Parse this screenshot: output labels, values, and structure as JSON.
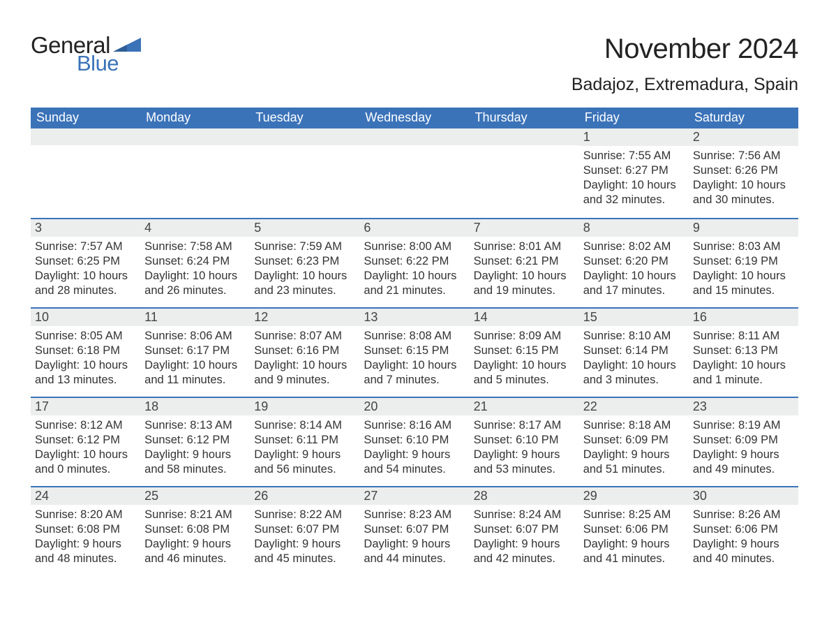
{
  "logo": {
    "general": "General",
    "blue": "Blue",
    "tri_color": "#3b73b9"
  },
  "month_title": "November 2024",
  "location": "Badajoz, Extremadura, Spain",
  "colors": {
    "header_bg": "#3b73b9",
    "header_text": "#ffffff",
    "date_bar_bg": "#eceded",
    "body_text": "#333333",
    "week_divider": "#3b73b9",
    "page_bg": "#ffffff"
  },
  "fonts": {
    "month_title_pt": 40,
    "location_pt": 25,
    "weekday_pt": 18,
    "date_pt": 18,
    "body_pt": 16.5
  },
  "weekdays": [
    "Sunday",
    "Monday",
    "Tuesday",
    "Wednesday",
    "Thursday",
    "Friday",
    "Saturday"
  ],
  "weeks": [
    [
      null,
      null,
      null,
      null,
      null,
      {
        "date": "1",
        "sunrise": "Sunrise: 7:55 AM",
        "sunset": "Sunset: 6:27 PM",
        "daylight": "Daylight: 10 hours and 32 minutes."
      },
      {
        "date": "2",
        "sunrise": "Sunrise: 7:56 AM",
        "sunset": "Sunset: 6:26 PM",
        "daylight": "Daylight: 10 hours and 30 minutes."
      }
    ],
    [
      {
        "date": "3",
        "sunrise": "Sunrise: 7:57 AM",
        "sunset": "Sunset: 6:25 PM",
        "daylight": "Daylight: 10 hours and 28 minutes."
      },
      {
        "date": "4",
        "sunrise": "Sunrise: 7:58 AM",
        "sunset": "Sunset: 6:24 PM",
        "daylight": "Daylight: 10 hours and 26 minutes."
      },
      {
        "date": "5",
        "sunrise": "Sunrise: 7:59 AM",
        "sunset": "Sunset: 6:23 PM",
        "daylight": "Daylight: 10 hours and 23 minutes."
      },
      {
        "date": "6",
        "sunrise": "Sunrise: 8:00 AM",
        "sunset": "Sunset: 6:22 PM",
        "daylight": "Daylight: 10 hours and 21 minutes."
      },
      {
        "date": "7",
        "sunrise": "Sunrise: 8:01 AM",
        "sunset": "Sunset: 6:21 PM",
        "daylight": "Daylight: 10 hours and 19 minutes."
      },
      {
        "date": "8",
        "sunrise": "Sunrise: 8:02 AM",
        "sunset": "Sunset: 6:20 PM",
        "daylight": "Daylight: 10 hours and 17 minutes."
      },
      {
        "date": "9",
        "sunrise": "Sunrise: 8:03 AM",
        "sunset": "Sunset: 6:19 PM",
        "daylight": "Daylight: 10 hours and 15 minutes."
      }
    ],
    [
      {
        "date": "10",
        "sunrise": "Sunrise: 8:05 AM",
        "sunset": "Sunset: 6:18 PM",
        "daylight": "Daylight: 10 hours and 13 minutes."
      },
      {
        "date": "11",
        "sunrise": "Sunrise: 8:06 AM",
        "sunset": "Sunset: 6:17 PM",
        "daylight": "Daylight: 10 hours and 11 minutes."
      },
      {
        "date": "12",
        "sunrise": "Sunrise: 8:07 AM",
        "sunset": "Sunset: 6:16 PM",
        "daylight": "Daylight: 10 hours and 9 minutes."
      },
      {
        "date": "13",
        "sunrise": "Sunrise: 8:08 AM",
        "sunset": "Sunset: 6:15 PM",
        "daylight": "Daylight: 10 hours and 7 minutes."
      },
      {
        "date": "14",
        "sunrise": "Sunrise: 8:09 AM",
        "sunset": "Sunset: 6:15 PM",
        "daylight": "Daylight: 10 hours and 5 minutes."
      },
      {
        "date": "15",
        "sunrise": "Sunrise: 8:10 AM",
        "sunset": "Sunset: 6:14 PM",
        "daylight": "Daylight: 10 hours and 3 minutes."
      },
      {
        "date": "16",
        "sunrise": "Sunrise: 8:11 AM",
        "sunset": "Sunset: 6:13 PM",
        "daylight": "Daylight: 10 hours and 1 minute."
      }
    ],
    [
      {
        "date": "17",
        "sunrise": "Sunrise: 8:12 AM",
        "sunset": "Sunset: 6:12 PM",
        "daylight": "Daylight: 10 hours and 0 minutes."
      },
      {
        "date": "18",
        "sunrise": "Sunrise: 8:13 AM",
        "sunset": "Sunset: 6:12 PM",
        "daylight": "Daylight: 9 hours and 58 minutes."
      },
      {
        "date": "19",
        "sunrise": "Sunrise: 8:14 AM",
        "sunset": "Sunset: 6:11 PM",
        "daylight": "Daylight: 9 hours and 56 minutes."
      },
      {
        "date": "20",
        "sunrise": "Sunrise: 8:16 AM",
        "sunset": "Sunset: 6:10 PM",
        "daylight": "Daylight: 9 hours and 54 minutes."
      },
      {
        "date": "21",
        "sunrise": "Sunrise: 8:17 AM",
        "sunset": "Sunset: 6:10 PM",
        "daylight": "Daylight: 9 hours and 53 minutes."
      },
      {
        "date": "22",
        "sunrise": "Sunrise: 8:18 AM",
        "sunset": "Sunset: 6:09 PM",
        "daylight": "Daylight: 9 hours and 51 minutes."
      },
      {
        "date": "23",
        "sunrise": "Sunrise: 8:19 AM",
        "sunset": "Sunset: 6:09 PM",
        "daylight": "Daylight: 9 hours and 49 minutes."
      }
    ],
    [
      {
        "date": "24",
        "sunrise": "Sunrise: 8:20 AM",
        "sunset": "Sunset: 6:08 PM",
        "daylight": "Daylight: 9 hours and 48 minutes."
      },
      {
        "date": "25",
        "sunrise": "Sunrise: 8:21 AM",
        "sunset": "Sunset: 6:08 PM",
        "daylight": "Daylight: 9 hours and 46 minutes."
      },
      {
        "date": "26",
        "sunrise": "Sunrise: 8:22 AM",
        "sunset": "Sunset: 6:07 PM",
        "daylight": "Daylight: 9 hours and 45 minutes."
      },
      {
        "date": "27",
        "sunrise": "Sunrise: 8:23 AM",
        "sunset": "Sunset: 6:07 PM",
        "daylight": "Daylight: 9 hours and 44 minutes."
      },
      {
        "date": "28",
        "sunrise": "Sunrise: 8:24 AM",
        "sunset": "Sunset: 6:07 PM",
        "daylight": "Daylight: 9 hours and 42 minutes."
      },
      {
        "date": "29",
        "sunrise": "Sunrise: 8:25 AM",
        "sunset": "Sunset: 6:06 PM",
        "daylight": "Daylight: 9 hours and 41 minutes."
      },
      {
        "date": "30",
        "sunrise": "Sunrise: 8:26 AM",
        "sunset": "Sunset: 6:06 PM",
        "daylight": "Daylight: 9 hours and 40 minutes."
      }
    ]
  ]
}
